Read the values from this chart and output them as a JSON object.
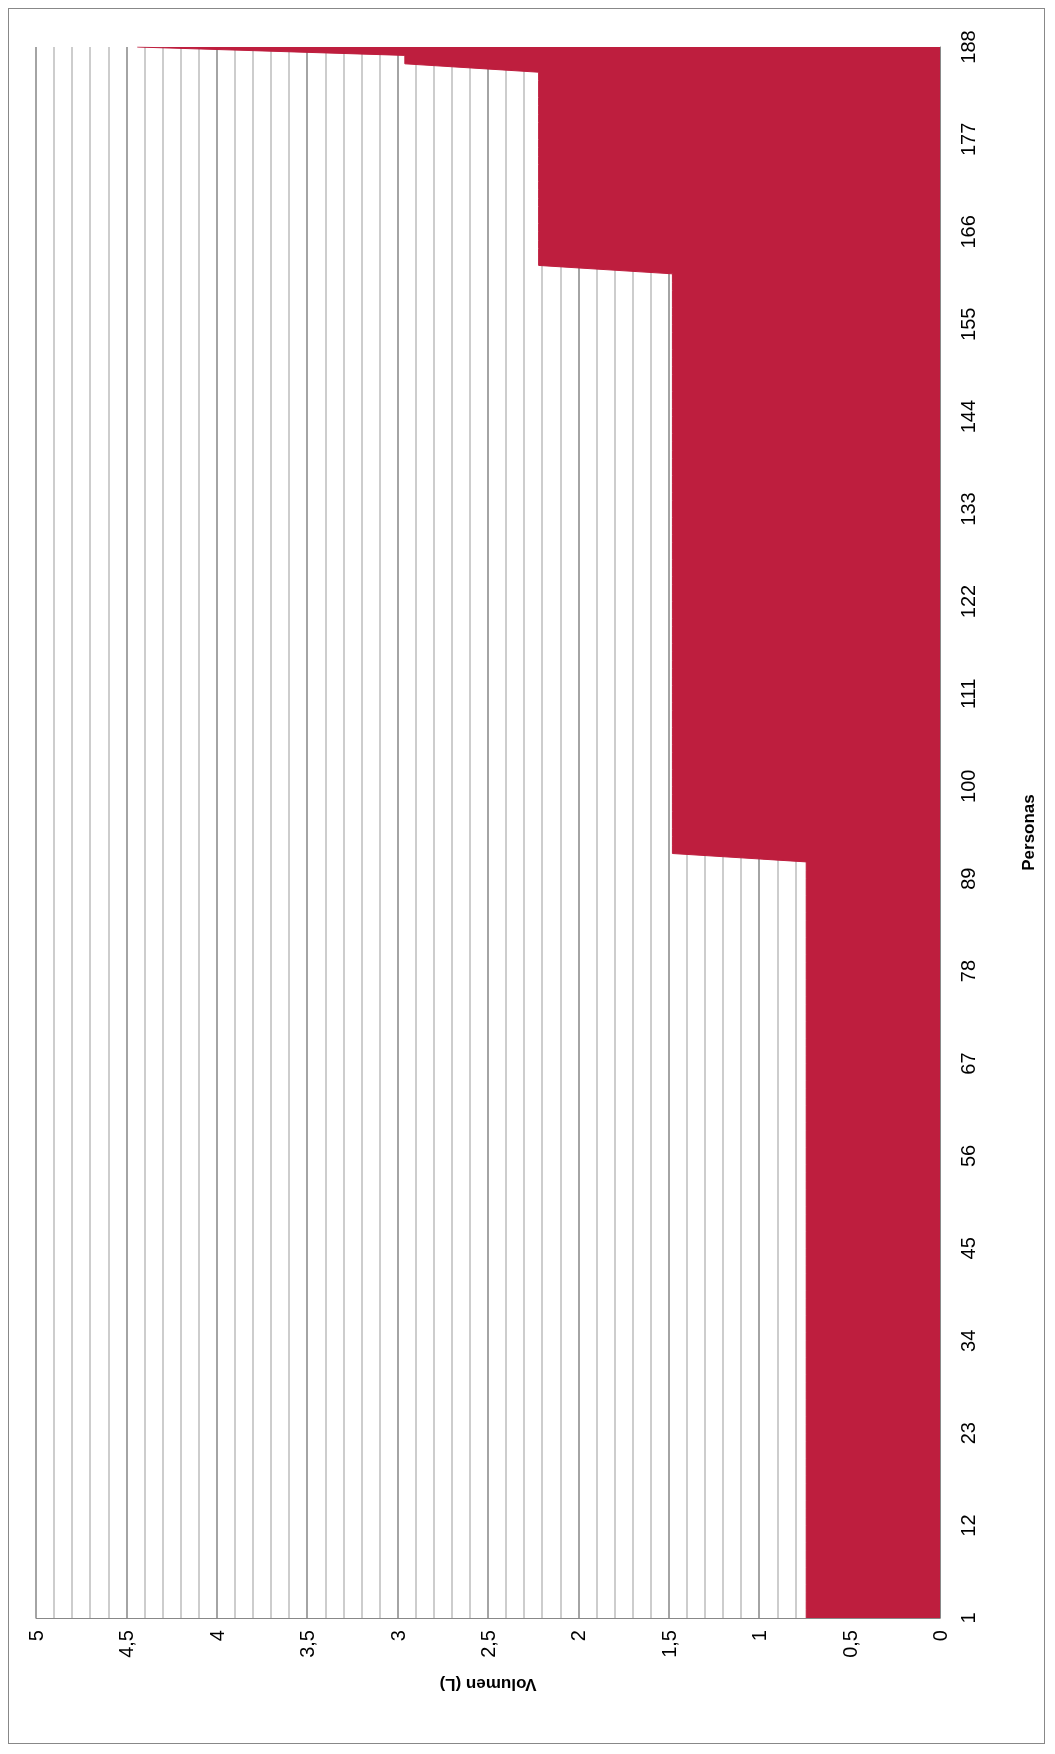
{
  "chart_data": {
    "type": "area",
    "orientation": "horizontal",
    "xlabel": "Volumen (L)",
    "ylabel": "Personas",
    "categories": [
      "188",
      null,
      null,
      null,
      null,
      null,
      null,
      null,
      null,
      null,
      null,
      "177",
      null,
      null,
      null,
      null,
      null,
      null,
      null,
      null,
      null,
      null,
      "166",
      null,
      null,
      null,
      null,
      null,
      null,
      null,
      null,
      null,
      null,
      "155",
      null,
      null,
      null,
      null,
      null,
      null,
      null,
      null,
      null,
      null,
      "144",
      null,
      null,
      null,
      null,
      null,
      null,
      null,
      null,
      null,
      null,
      "133",
      null,
      null,
      null,
      null,
      null,
      null,
      null,
      null,
      null,
      null,
      "122",
      null,
      null,
      null,
      null,
      null,
      null,
      null,
      null,
      null,
      null,
      "111",
      null,
      null,
      null,
      null,
      null,
      null,
      null,
      null,
      null,
      null,
      "100",
      null,
      null,
      null,
      null,
      null,
      null,
      null,
      null,
      null,
      null,
      "89",
      null,
      null,
      null,
      null,
      null,
      null,
      null,
      null,
      null,
      null,
      "78",
      null,
      null,
      null,
      null,
      null,
      null,
      null,
      null,
      null,
      null,
      "67",
      null,
      null,
      null,
      null,
      null,
      null,
      null,
      null,
      null,
      null,
      "56",
      null,
      null,
      null,
      null,
      null,
      null,
      null,
      null,
      null,
      null,
      "45",
      null,
      null,
      null,
      null,
      null,
      null,
      null,
      null,
      null,
      null,
      "34",
      null,
      null,
      null,
      null,
      null,
      null,
      null,
      null,
      null,
      null,
      "23",
      null,
      null,
      null,
      null,
      null,
      null,
      null,
      null,
      null,
      null,
      "12",
      null,
      null,
      null,
      null,
      null,
      null,
      null,
      null,
      null,
      null,
      "1"
    ],
    "values": [
      4.44,
      2.96,
      2.96,
      2.22,
      2.22,
      2.22,
      2.22,
      2.22,
      2.22,
      2.22,
      2.22,
      2.22,
      2.22,
      2.22,
      2.22,
      2.22,
      2.22,
      2.22,
      2.22,
      2.22,
      2.22,
      2.22,
      2.22,
      2.22,
      2.22,
      2.22,
      2.22,
      1.48,
      1.48,
      1.48,
      1.48,
      1.48,
      1.48,
      1.48,
      1.48,
      1.48,
      1.48,
      1.48,
      1.48,
      1.48,
      1.48,
      1.48,
      1.48,
      1.48,
      1.48,
      1.48,
      1.48,
      1.48,
      1.48,
      1.48,
      1.48,
      1.48,
      1.48,
      1.48,
      1.48,
      1.48,
      1.48,
      1.48,
      1.48,
      1.48,
      1.48,
      1.48,
      1.48,
      1.48,
      1.48,
      1.48,
      1.48,
      1.48,
      1.48,
      1.48,
      1.48,
      1.48,
      1.48,
      1.48,
      1.48,
      1.48,
      1.48,
      1.48,
      1.48,
      1.48,
      1.48,
      1.48,
      1.48,
      1.48,
      1.48,
      1.48,
      1.48,
      1.48,
      1.48,
      1.48,
      1.48,
      1.48,
      1.48,
      1.48,
      1.48,
      1.48,
      1.48,
      0.74,
      0.74,
      0.74,
      0.74,
      0.74,
      0.74,
      0.74,
      0.74,
      0.74,
      0.74,
      0.74,
      0.74,
      0.74,
      0.74,
      0.74,
      0.74,
      0.74,
      0.74,
      0.74,
      0.74,
      0.74,
      0.74,
      0.74,
      0.74,
      0.74,
      0.74,
      0.74,
      0.74,
      0.74,
      0.74,
      0.74,
      0.74,
      0.74,
      0.74,
      0.74,
      0.74,
      0.74,
      0.74,
      0.74,
      0.74,
      0.74,
      0.74,
      0.74,
      0.74,
      0.74,
      0.74,
      0.74,
      0.74,
      0.74,
      0.74,
      0.74,
      0.74,
      0.74,
      0.74,
      0.74,
      0.74,
      0.74,
      0.74,
      0.74,
      0.74,
      0.74,
      0.74,
      0.74,
      0.74,
      0.74,
      0.74,
      0.74,
      0.74,
      0.74,
      0.74,
      0.74,
      0.74,
      0.74,
      0.74,
      0.74,
      0.74,
      0.74,
      0.74,
      0.74,
      0.74,
      0.74,
      0.74,
      0.74,
      0.74,
      0.74,
      0.74,
      0.74,
      0.74,
      0.74,
      0.74,
      0.74
    ],
    "color": "#be1e3e",
    "xlim": [
      5,
      0
    ],
    "xticks": [
      5,
      {
        "value": 4.5,
        "label": "4,5"
      },
      4,
      {
        "value": 3.5,
        "label": "3,5"
      },
      3,
      {
        "value": 2.5,
        "label": "2,5"
      },
      2,
      {
        "value": 1.5,
        "label": "1,5"
      },
      1,
      {
        "value": 0.5,
        "label": "0,5"
      },
      0
    ],
    "grid": "x"
  }
}
